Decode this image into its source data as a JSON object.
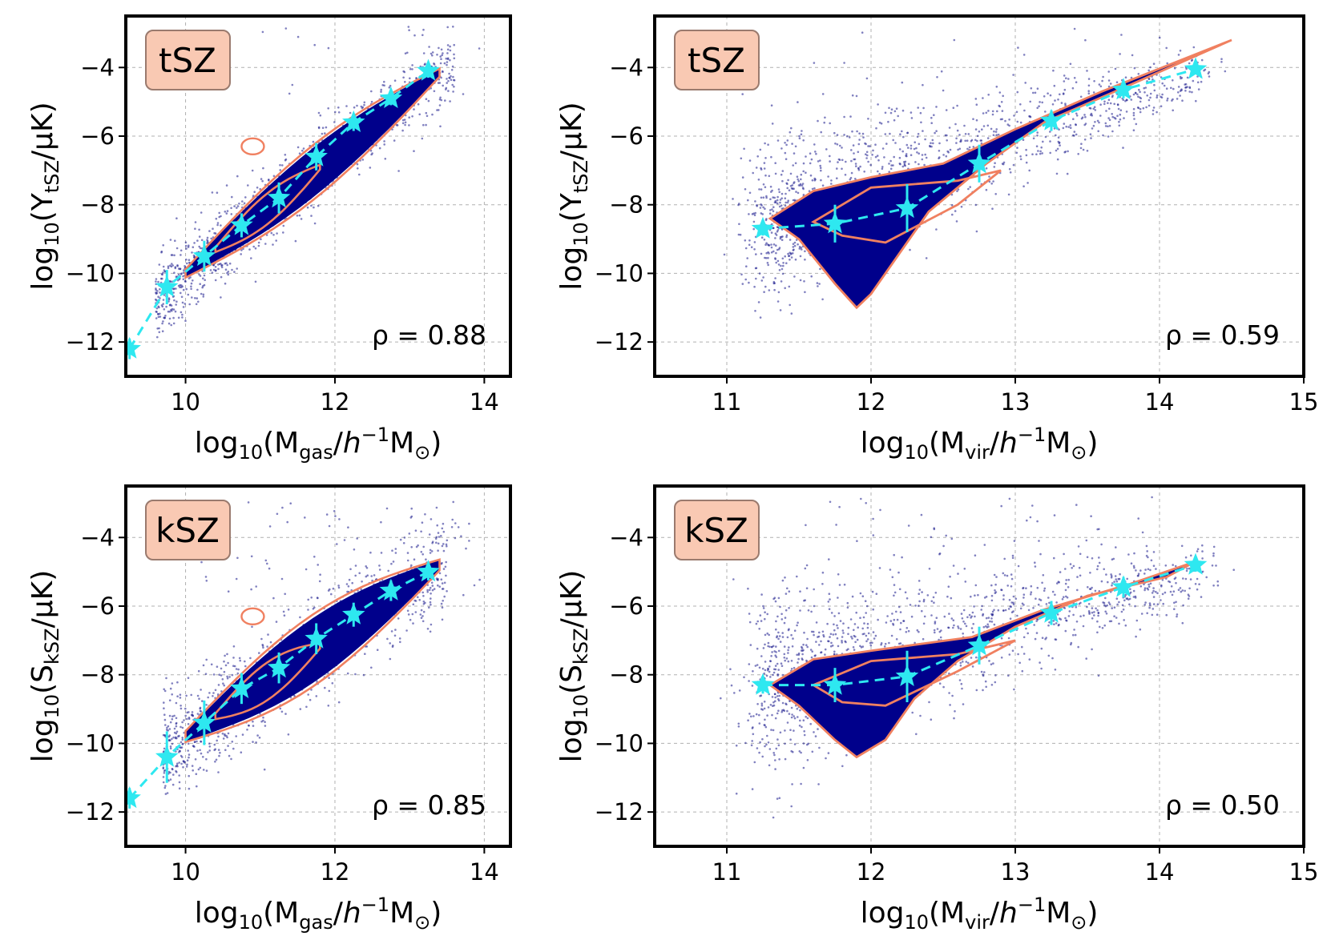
{
  "chart_data": [
    {
      "id": "tsz-mgas",
      "type": "scatter",
      "badge": "tSZ",
      "correlation": "ρ = 0.88",
      "xlabel": {
        "prefix": "log",
        "sub": "10",
        "open": "(M",
        "qsub": "gas",
        "unit_mid": "/",
        "h": "h",
        "sup": "−1",
        "tail": "M",
        "sun": "⊙",
        "close": ")"
      },
      "ylabel": {
        "prefix": "log",
        "sub": "10",
        "open": "(Y",
        "qsub": "tSZ",
        "unit": "/μK)"
      },
      "xlim": [
        9.2,
        14.35
      ],
      "ylim": [
        -13.0,
        -2.5
      ],
      "xticks": [
        10,
        12,
        14
      ],
      "xtick_labels": [
        "10",
        "12",
        "14"
      ],
      "yticks": [
        -12,
        -10,
        -8,
        -6,
        -4
      ],
      "ytick_labels": [
        "−12",
        "−10",
        "−8",
        "−6",
        "−4"
      ],
      "cloud": {
        "kind": "linear",
        "xmin": 9.6,
        "xmax": 13.6,
        "slope": 1.72,
        "intercept": -27.2,
        "spread": 0.55,
        "contours": [
          [
            10.0,
            13.4,
            0.8
          ],
          [
            10.4,
            11.8,
            0.45
          ]
        ],
        "outlier": [
          10.9,
          -6.3
        ]
      },
      "binned_means": {
        "x": [
          9.25,
          9.75,
          10.25,
          10.75,
          11.25,
          11.75,
          12.25,
          12.75,
          13.25
        ],
        "y": [
          -12.2,
          -10.4,
          -9.5,
          -8.6,
          -7.8,
          -6.6,
          -5.6,
          -4.9,
          -4.1
        ],
        "yerr": [
          0.3,
          0.5,
          0.45,
          0.35,
          0.45,
          0.4,
          0.25,
          0.2,
          0.2
        ]
      }
    },
    {
      "id": "tsz-mvir",
      "type": "scatter",
      "badge": "tSZ",
      "correlation": "ρ = 0.59",
      "xlabel": {
        "prefix": "log",
        "sub": "10",
        "open": "(M",
        "qsub": "vir",
        "unit_mid": "/",
        "h": "h",
        "sup": "−1",
        "tail": "M",
        "sun": "⊙",
        "close": ")"
      },
      "ylabel": {
        "prefix": "log",
        "sub": "10",
        "open": "(Y",
        "qsub": "tSZ",
        "unit": "/μK)"
      },
      "xlim": [
        10.5,
        15.0
      ],
      "ylim": [
        -13.0,
        -2.5
      ],
      "xticks": [
        11,
        12,
        13,
        14,
        15
      ],
      "xtick_labels": [
        "11",
        "12",
        "13",
        "14",
        "15"
      ],
      "yticks": [
        -12,
        -10,
        -8,
        -6,
        -4
      ],
      "ytick_labels": [
        "−12",
        "−10",
        "−8",
        "−6",
        "−4"
      ],
      "cloud": {
        "kind": "wedge",
        "xmin": 11.2,
        "xmax": 14.4
      },
      "binned_means": {
        "x": [
          11.25,
          11.75,
          12.25,
          12.75,
          13.25,
          13.75,
          14.25
        ],
        "y": [
          -8.7,
          -8.55,
          -8.1,
          -6.8,
          -5.55,
          -4.65,
          -4.05
        ],
        "yerr": [
          0.2,
          0.55,
          0.7,
          0.55,
          0.3,
          0.25,
          0.15
        ]
      }
    },
    {
      "id": "ksz-mgas",
      "type": "scatter",
      "badge": "kSZ",
      "correlation": "ρ = 0.85",
      "xlabel": {
        "prefix": "log",
        "sub": "10",
        "open": "(M",
        "qsub": "gas",
        "unit_mid": "/",
        "h": "h",
        "sup": "−1",
        "tail": "M",
        "sun": "⊙",
        "close": ")"
      },
      "ylabel": {
        "prefix": "log",
        "sub": "10",
        "open": "(S",
        "qsub": "kSZ",
        "unit": "/μK)"
      },
      "xlim": [
        9.2,
        14.35
      ],
      "ylim": [
        -13.0,
        -2.5
      ],
      "xticks": [
        10,
        12,
        14
      ],
      "xtick_labels": [
        "10",
        "12",
        "14"
      ],
      "yticks": [
        -12,
        -10,
        -8,
        -6,
        -4
      ],
      "ytick_labels": [
        "−12",
        "−10",
        "−8",
        "−6",
        "−4"
      ],
      "cloud": {
        "kind": "linear",
        "xmin": 9.7,
        "xmax": 13.5,
        "slope": 1.47,
        "intercept": -24.5,
        "spread": 0.75,
        "contours": [
          [
            10.0,
            13.4,
            1.05
          ],
          [
            10.4,
            11.8,
            0.55
          ]
        ],
        "outlier": [
          10.9,
          -6.3
        ]
      },
      "binned_means": {
        "x": [
          9.25,
          9.75,
          10.25,
          10.75,
          11.25,
          11.75,
          12.25,
          12.75,
          13.25
        ],
        "y": [
          -11.6,
          -10.4,
          -9.4,
          -8.4,
          -7.8,
          -6.95,
          -6.25,
          -5.55,
          -5.0
        ],
        "yerr": [
          0.3,
          0.75,
          0.65,
          0.45,
          0.45,
          0.45,
          0.35,
          0.3,
          0.25
        ]
      }
    },
    {
      "id": "ksz-mvir",
      "type": "scatter",
      "badge": "kSZ",
      "correlation": "ρ = 0.50",
      "xlabel": {
        "prefix": "log",
        "sub": "10",
        "open": "(M",
        "qsub": "vir",
        "unit_mid": "/",
        "h": "h",
        "sup": "−1",
        "tail": "M",
        "sun": "⊙",
        "close": ")"
      },
      "ylabel": {
        "prefix": "log",
        "sub": "10",
        "open": "(S",
        "qsub": "kSZ",
        "unit": "/μK)"
      },
      "xlim": [
        10.5,
        15.0
      ],
      "ylim": [
        -13.0,
        -2.5
      ],
      "xticks": [
        11,
        12,
        13,
        14,
        15
      ],
      "xtick_labels": [
        "11",
        "12",
        "13",
        "14",
        "15"
      ],
      "yticks": [
        -12,
        -10,
        -8,
        -6,
        -4
      ],
      "ytick_labels": [
        "−12",
        "−10",
        "−8",
        "−6",
        "−4"
      ],
      "cloud": {
        "kind": "wedge2",
        "xmin": 11.2,
        "xmax": 14.4
      },
      "binned_means": {
        "x": [
          11.25,
          11.75,
          12.25,
          12.75,
          13.25,
          13.75,
          14.25
        ],
        "y": [
          -8.3,
          -8.3,
          -8.05,
          -7.15,
          -6.2,
          -5.45,
          -4.8
        ],
        "yerr": [
          0.25,
          0.5,
          0.75,
          0.55,
          0.35,
          0.3,
          0.2
        ]
      }
    }
  ],
  "colors": {
    "points": "#1a1a8c",
    "core": "#00008b",
    "contour": "#f08060",
    "mean": "#2ee8f0",
    "badge_fill": "#f9c9b3",
    "badge_stroke": "#9a7a6e"
  }
}
